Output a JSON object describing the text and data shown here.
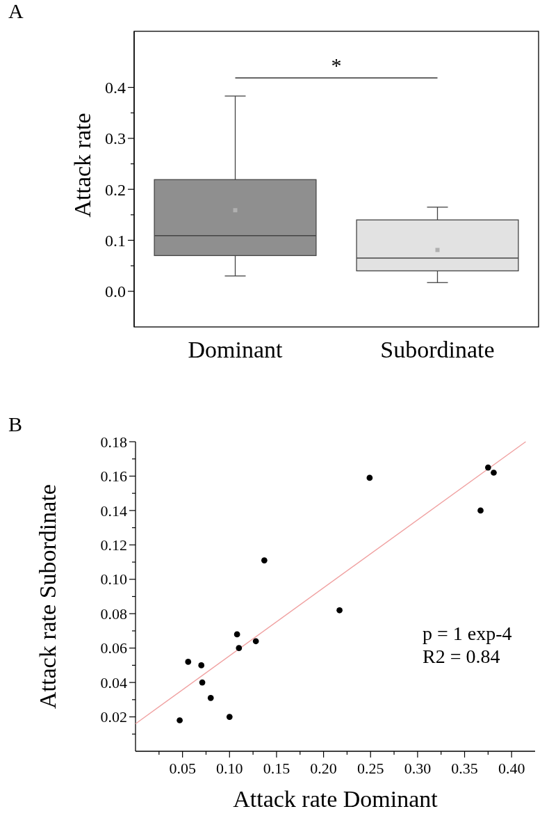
{
  "chart_data": [
    {
      "type": "box",
      "title": "A",
      "ylabel": "Attack rate",
      "categories": [
        "Dominant",
        "Subordinate"
      ],
      "colors": [
        "#8f8f8f",
        "#e2e2e2"
      ],
      "boxes": [
        {
          "low": 0.03,
          "q1": 0.07,
          "median": 0.109,
          "q3": 0.219,
          "high": 0.383,
          "mean": 0.159
        },
        {
          "low": 0.017,
          "q1": 0.04,
          "median": 0.065,
          "q3": 0.14,
          "high": 0.165,
          "mean": 0.081
        }
      ],
      "ylim": [
        -0.07,
        0.51
      ],
      "yticks": [
        {
          "value": 0.0,
          "label": "0.0"
        },
        {
          "value": 0.05,
          "label": null
        },
        {
          "value": 0.1,
          "label": "0.1"
        },
        {
          "value": 0.15,
          "label": null
        },
        {
          "value": 0.2,
          "label": "0.2"
        },
        {
          "value": 0.25,
          "label": null
        },
        {
          "value": 0.3,
          "label": "0.3"
        },
        {
          "value": 0.35,
          "label": null
        },
        {
          "value": 0.4,
          "label": "0.4"
        }
      ],
      "annotations": [
        "*"
      ]
    },
    {
      "type": "scatter",
      "title": "B",
      "xlabel": "Attack rate Dominant",
      "ylabel": "Attack rate Subordinate",
      "series": [
        {
          "type": "scatter",
          "marker": "circle",
          "color": "#000000",
          "x": [
            0.056,
            0.07,
            0.071,
            0.108,
            0.11,
            0.128,
            0.137,
            0.217,
            0.249,
            0.375,
            0.381,
            0.367,
            0.047,
            0.08,
            0.1
          ],
          "values": [
            0.052,
            0.05,
            0.04,
            0.068,
            0.06,
            0.064,
            0.111,
            0.082,
            0.159,
            0.165,
            0.162,
            0.14,
            0.018,
            0.031,
            0.02
          ]
        },
        {
          "type": "line",
          "color": "#f0a0a0",
          "x": [
            0,
            0.415
          ],
          "values": [
            0.016,
            0.18
          ]
        }
      ],
      "xlim": [
        0,
        0.425
      ],
      "xticks": [
        {
          "value": 0.025,
          "label": null
        },
        {
          "value": 0.05,
          "label": "0.05"
        },
        {
          "value": 0.075,
          "label": null
        },
        {
          "value": 0.1,
          "label": "0.10"
        },
        {
          "value": 0.125,
          "label": null
        },
        {
          "value": 0.15,
          "label": "0.15"
        },
        {
          "value": 0.175,
          "label": null
        },
        {
          "value": 0.2,
          "label": "0.20"
        },
        {
          "value": 0.225,
          "label": null
        },
        {
          "value": 0.25,
          "label": "0.25"
        },
        {
          "value": 0.275,
          "label": null
        },
        {
          "value": 0.3,
          "label": "0.30"
        },
        {
          "value": 0.325,
          "label": null
        },
        {
          "value": 0.35,
          "label": "0.35"
        },
        {
          "value": 0.375,
          "label": null
        },
        {
          "value": 0.4,
          "label": "0.40"
        }
      ],
      "ylim": [
        0,
        0.18
      ],
      "yticks": [
        {
          "value": 0.01,
          "label": null
        },
        {
          "value": 0.02,
          "label": "0.02"
        },
        {
          "value": 0.03,
          "label": null
        },
        {
          "value": 0.04,
          "label": "0.04"
        },
        {
          "value": 0.05,
          "label": null
        },
        {
          "value": 0.06,
          "label": "0.06"
        },
        {
          "value": 0.07,
          "label": null
        },
        {
          "value": 0.08,
          "label": "0.08"
        },
        {
          "value": 0.09,
          "label": null
        },
        {
          "value": 0.1,
          "label": "0.10"
        },
        {
          "value": 0.11,
          "label": null
        },
        {
          "value": 0.12,
          "label": "0.12"
        },
        {
          "value": 0.13,
          "label": null
        },
        {
          "value": 0.14,
          "label": "0.14"
        },
        {
          "value": 0.15,
          "label": null
        },
        {
          "value": 0.16,
          "label": "0.16"
        },
        {
          "value": 0.17,
          "label": null
        },
        {
          "value": 0.18,
          "label": "0.18"
        }
      ],
      "annotations": [
        "p = 1 exp-4",
        "R2 = 0.84"
      ]
    }
  ]
}
